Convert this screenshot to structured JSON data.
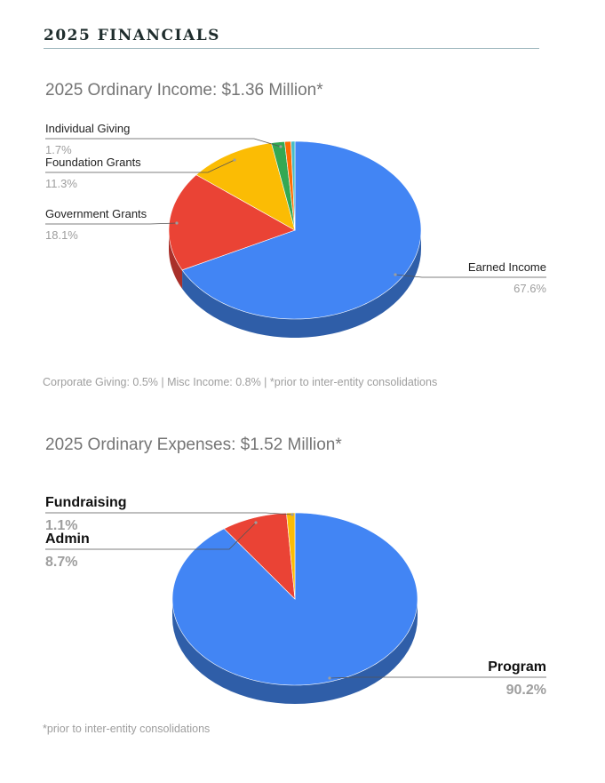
{
  "heading": "2025 FINANCIALS",
  "colors": {
    "blue": "#4285f4",
    "blue_side": "#2f5ea8",
    "red": "#ea4335",
    "red_side": "#a9302a",
    "yellow": "#fbbc04",
    "yellow_side": "#b48703",
    "green": "#34a853",
    "green_side": "#247a3b",
    "orange": "#ff6d01",
    "orange_side": "#b84f01",
    "teal": "#46bdc6",
    "teal_side": "#2f8a91"
  },
  "chart_data": [
    {
      "type": "pie",
      "title": "2025 Ordinary Income: $1.36 Million*",
      "note": "Corporate Giving: 0.5% | Misc Income: 0.8% | *prior to inter-entity consolidations",
      "label_style": "regular",
      "slices": [
        {
          "name": "Earned Income",
          "value": 67.6,
          "percent_label": "67.6%",
          "color": "blue",
          "side": "blue_side",
          "labeled": true,
          "label_side": "right"
        },
        {
          "name": "Government Grants",
          "value": 18.1,
          "percent_label": "18.1%",
          "color": "red",
          "side": "red_side",
          "labeled": true,
          "label_side": "left"
        },
        {
          "name": "Foundation Grants",
          "value": 11.3,
          "percent_label": "11.3%",
          "color": "yellow",
          "side": "yellow_side",
          "labeled": true,
          "label_side": "left"
        },
        {
          "name": "Individual Giving",
          "value": 1.7,
          "percent_label": "1.7%",
          "color": "green",
          "side": "green_side",
          "labeled": true,
          "label_side": "left"
        },
        {
          "name": "Misc Income",
          "value": 0.8,
          "percent_label": "0.8%",
          "color": "orange",
          "side": "orange_side",
          "labeled": false
        },
        {
          "name": "Corporate Giving",
          "value": 0.5,
          "percent_label": "0.5%",
          "color": "teal",
          "side": "teal_side",
          "labeled": false
        }
      ]
    },
    {
      "type": "pie",
      "title": "2025 Ordinary Expenses: $1.52 Million*",
      "note": "*prior to inter-entity consolidations",
      "label_style": "bold",
      "slices": [
        {
          "name": "Program",
          "value": 90.2,
          "percent_label": "90.2%",
          "color": "blue",
          "side": "blue_side",
          "labeled": true,
          "label_side": "right"
        },
        {
          "name": "Admin",
          "value": 8.7,
          "percent_label": "8.7%",
          "color": "red",
          "side": "red_side",
          "labeled": true,
          "label_side": "left"
        },
        {
          "name": "Fundraising",
          "value": 1.1,
          "percent_label": "1.1%",
          "color": "yellow",
          "side": "yellow_side",
          "labeled": true,
          "label_side": "left"
        }
      ]
    }
  ]
}
